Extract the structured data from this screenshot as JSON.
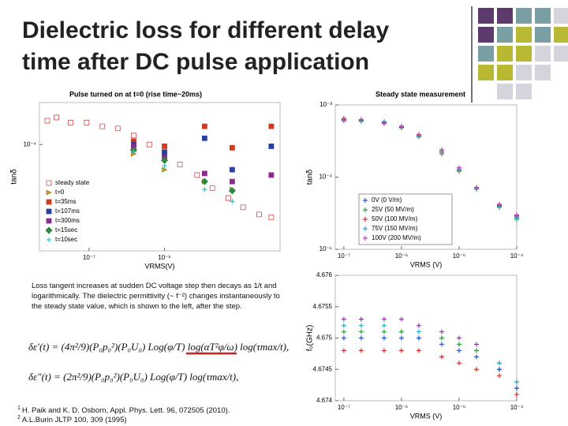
{
  "title": [
    "Dielectric  loss for different delay",
    "time after DC pulse application"
  ],
  "chart_data": [
    {
      "type": "scatter",
      "title": "Pulse turned on at t=0 (rise time~20ms)",
      "xlabel": "VRMS(V)",
      "ylabel": "tanδ",
      "log_x": true,
      "log_y": true,
      "xlim": [
        2.2e-08,
        3.4e-05
      ],
      "ylim": [
        4.5e-06,
        0.00034
      ],
      "xticks": [
        {
          "value": 1e-07,
          "label": "10⁻⁷"
        },
        {
          "value": 1e-06,
          "label": "10⁻⁶"
        }
      ],
      "yticks": [
        {
          "value": 0.0001,
          "label": "10⁻⁴"
        }
      ],
      "legend": "lower left",
      "series": [
        {
          "name": "steady state",
          "color": "#c0504d",
          "marker": "square-open",
          "x": [
            2.8e-08,
            3.7e-08,
            5.7e-08,
            9.3e-08,
            1.5e-07,
            2.4e-07,
            3.9e-07,
            6.3e-07,
            1e-06,
            1.6e-06,
            2.7e-06,
            4.3e-06,
            7e-06,
            1.1e-05,
            1.8e-05,
            2.6e-05
          ],
          "values": [
            0.0002,
            0.00022,
            0.00019,
            0.00019,
            0.00017,
            0.00016,
            0.00013,
            0.0001,
            8.1e-05,
            5.6e-05,
            4.1e-05,
            2.8e-05,
            2.1e-05,
            1.6e-05,
            1.3e-05,
            1.2e-05
          ]
        },
        {
          "name": "t=0",
          "color": "#8db33a",
          "marker": "triangle",
          "x": [
            3.9e-07,
            1e-06,
            3.4e-06,
            7.9e-06
          ],
          "values": [
            7.6e-05,
            4.8e-05,
            3.4e-05,
            2.7e-05
          ]
        },
        {
          "name": "t=35ms",
          "color": "#d23a20",
          "marker": "square",
          "x": [
            3.9e-07,
            1e-06,
            3.4e-06,
            7.9e-06,
            2.6e-05
          ],
          "values": [
            0.00011,
            9.5e-05,
            0.00017,
            9.1e-05,
            0.00017
          ]
        },
        {
          "name": "t=107ms",
          "color": "#2a3fa0",
          "marker": "square",
          "x": [
            3.9e-07,
            1e-06,
            3.4e-06,
            7.9e-06,
            2.6e-05
          ],
          "values": [
            0.0001,
            7.9e-05,
            0.00012,
            4.8e-05,
            9.5e-05
          ]
        },
        {
          "name": "t=300ms",
          "color": "#8a2a8a",
          "marker": "square",
          "x": [
            3.9e-07,
            1e-06,
            3.4e-06,
            7.9e-06,
            2.6e-05
          ],
          "values": [
            9.5e-05,
            6.8e-05,
            4.3e-05,
            3.4e-05,
            4.1e-05
          ]
        },
        {
          "name": "t=15sec",
          "color": "#2a8a40",
          "marker": "diamond",
          "x": [
            3.9e-07,
            1e-06,
            3.4e-06,
            7.9e-06
          ],
          "values": [
            8.5e-05,
            6.3e-05,
            3.4e-05,
            2.6e-05
          ]
        },
        {
          "name": "t=10sec",
          "color": "#30c0d0",
          "marker": "plus",
          "x": [
            3.9e-07,
            1e-06,
            3.4e-06,
            7.9e-06
          ],
          "values": [
            8.1e-05,
            5.4e-05,
            2.7e-05,
            1.9e-05
          ]
        }
      ]
    },
    {
      "type": "scatter",
      "title": "Steady state measurement",
      "xlabel": "VRMS (V)",
      "ylabel": "tanδ",
      "log_x": true,
      "log_y": true,
      "xlim": [
        7.1e-08,
        0.0001
      ],
      "ylim": [
        1e-05,
        0.001
      ],
      "xticks": [
        {
          "value": 1e-07,
          "label": "10⁻⁷"
        },
        {
          "value": 1e-06,
          "label": "10⁻⁶"
        },
        {
          "value": 1e-05,
          "label": "10⁻⁵"
        },
        {
          "value": 0.0001,
          "label": "10⁻⁴"
        }
      ],
      "yticks": [
        {
          "value": 0.001,
          "label": "10⁻³"
        },
        {
          "value": 0.0001,
          "label": "10⁻⁴"
        },
        {
          "value": 1e-05,
          "label": "10⁻⁵"
        }
      ],
      "legend": "lower left",
      "series": [
        {
          "name": "0V (0 V/m)",
          "color": "#3050d0",
          "marker": "plus",
          "x": [
            1e-07,
            2e-07,
            5e-07,
            1e-06,
            2e-06,
            5e-06,
            1e-05,
            2e-05,
            5e-05,
            0.0001
          ],
          "values": [
            0.00063,
            0.00061,
            0.00058,
            0.0005,
            0.00038,
            0.00022,
            0.00013,
            7e-05,
            4e-05,
            2.8e-05
          ]
        },
        {
          "name": "25V (50 MV/m)",
          "color": "#30a040",
          "marker": "plus",
          "x": [
            1e-07,
            2e-07,
            5e-07,
            1e-06,
            2e-06,
            5e-06,
            1e-05,
            2e-05,
            5e-05,
            0.0001
          ],
          "values": [
            0.0006,
            0.00062,
            0.00056,
            0.00048,
            0.00036,
            0.00023,
            0.00012,
            6.8e-05,
            3.8e-05,
            2.6e-05
          ]
        },
        {
          "name": "50V (100 MV/m)",
          "color": "#d03030",
          "marker": "plus",
          "x": [
            1e-07,
            2e-07,
            5e-07,
            1e-06,
            2e-06,
            5e-06,
            1e-05,
            2e-05,
            5e-05,
            0.0001
          ],
          "values": [
            0.00065,
            0.0006,
            0.00057,
            0.00049,
            0.00039,
            0.00021,
            0.000125,
            7.2e-05,
            4.1e-05,
            2.9e-05
          ]
        },
        {
          "name": "75V (150 MV/m)",
          "color": "#30b0c0",
          "marker": "plus",
          "x": [
            1e-07,
            2e-07,
            5e-07,
            1e-06,
            2e-06,
            5e-06,
            1e-05,
            2e-05,
            5e-05,
            0.0001
          ],
          "values": [
            0.00061,
            0.00059,
            0.00059,
            0.00051,
            0.00037,
            0.00022,
            0.00013,
            6.9e-05,
            3.9e-05,
            2.7e-05
          ]
        },
        {
          "name": "100V (200 MV/m)",
          "color": "#c040c0",
          "marker": "plus",
          "x": [
            1e-07,
            2e-07,
            5e-07,
            1e-06,
            2e-06,
            5e-06,
            1e-05,
            2e-05,
            5e-05,
            0.0001
          ],
          "values": [
            0.00062,
            0.00063,
            0.00055,
            0.0005,
            0.00038,
            0.00024,
            0.000135,
            7.1e-05,
            4.2e-05,
            3e-05
          ]
        }
      ]
    },
    {
      "type": "scatter",
      "xlabel": "VRMS (V)",
      "ylabel": "f₀(GHz)",
      "log_x": true,
      "log_y": false,
      "xlim": [
        7.1e-08,
        0.0001
      ],
      "ylim": [
        4.674,
        4.676
      ],
      "xticks": [
        {
          "value": 1e-07,
          "label": "10⁻⁷"
        },
        {
          "value": 1e-06,
          "label": "10⁻⁶"
        },
        {
          "value": 1e-05,
          "label": "10⁻⁵"
        },
        {
          "value": 0.0001,
          "label": "10⁻⁴"
        }
      ],
      "yticks": [
        4.676,
        4.6755,
        4.675,
        4.6745,
        4.674
      ],
      "series": [
        {
          "color": "#8040a0",
          "marker": "plus",
          "x": [
            1e-07,
            2e-07,
            5e-07,
            1e-06,
            2e-06,
            5e-06,
            1e-05,
            2e-05,
            5e-05,
            0.0001
          ],
          "values": [
            4.6753,
            4.6753,
            4.6753,
            4.6753,
            4.6752,
            4.6751,
            4.675,
            4.6749,
            4.6746,
            4.6743
          ]
        },
        {
          "color": "#30b0c0",
          "marker": "plus",
          "x": [
            1e-07,
            2e-07,
            5e-07,
            1e-06,
            2e-06,
            5e-06,
            1e-05,
            2e-05,
            5e-05,
            0.0001
          ],
          "values": [
            4.6752,
            4.6752,
            4.6752,
            4.6751,
            4.6751,
            4.675,
            4.6749,
            4.6748,
            4.6746,
            4.6743
          ]
        },
        {
          "color": "#30a040",
          "marker": "plus",
          "x": [
            1e-07,
            2e-07,
            5e-07,
            1e-06,
            2e-06,
            5e-06,
            1e-05,
            2e-05,
            5e-05,
            0.0001
          ],
          "values": [
            4.6751,
            4.6751,
            4.6751,
            4.6751,
            4.675,
            4.675,
            4.6749,
            4.6748,
            4.6745,
            4.6742
          ]
        },
        {
          "color": "#3050d0",
          "marker": "plus",
          "x": [
            1e-07,
            2e-07,
            5e-07,
            1e-06,
            2e-06,
            5e-06,
            1e-05,
            2e-05,
            5e-05,
            0.0001
          ],
          "values": [
            4.675,
            4.675,
            4.675,
            4.675,
            4.675,
            4.6749,
            4.6748,
            4.6747,
            4.6745,
            4.6742
          ]
        },
        {
          "color": "#d03030",
          "marker": "plus",
          "x": [
            1e-07,
            2e-07,
            5e-07,
            1e-06,
            2e-06,
            5e-06,
            1e-05,
            2e-05,
            5e-05,
            0.0001
          ],
          "values": [
            4.6748,
            4.6748,
            4.6748,
            4.6748,
            4.6748,
            4.6747,
            4.6746,
            4.6745,
            4.6744,
            4.6741
          ]
        }
      ]
    }
  ],
  "note": "Loss tangent increases at sudden DC voltage step then decays as 1/t and logarithmically. The dielectric permittivity (~ f⁻²) changes instantaneously to the steady state value, which is shown to the left, after the step.",
  "equations": [
    "δε′(t) = (4π²/9)(P₀p₀²)(P₀U₀) Log(φ/T) log(αT²φ/ω) log(τmax/t),",
    "δε″(t) = (2π²/9)(P₀p₀²)(P₀U₀) Log(φ/T) log(τmax/t),"
  ],
  "footnotes": [
    {
      "marker": "1",
      "text": "H. Paik and K. D. Osborn, Appl. Phys. Lett. 96, 072505 (2010)."
    },
    {
      "marker": "2",
      "text": "A.L.Burin  JLTP 100, 309 (1995)"
    }
  ]
}
